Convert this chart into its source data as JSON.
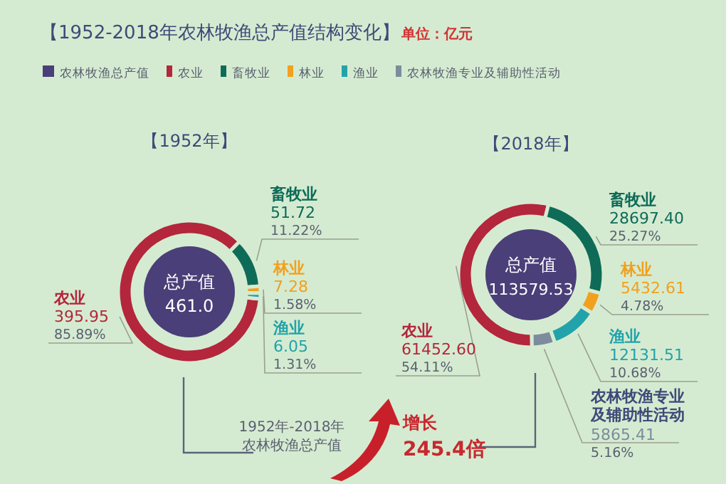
{
  "chart_data": [
    {
      "type": "donut",
      "title": "【1952-2018年农林牧渔总产值结构变化】",
      "subtitle": "【1952年】",
      "categories": [
        "农业",
        "畜牧业",
        "林业",
        "渔业"
      ],
      "values": [
        395.95,
        51.72,
        7.28,
        6.05
      ],
      "value_labels": [
        "395.95",
        "51.72",
        "7.28",
        "6.05"
      ],
      "colors": [
        "#b3263c",
        "#0e6b58",
        "#f2a01e",
        "#22a3aa"
      ],
      "annotations": [
        "单位：亿元",
        "总产值",
        "461.0",
        "1952年-2018年",
        "农林牧渔总产值",
        {
          "text": "85.89%",
          "x": "农业"
        },
        {
          "text": "11.22%",
          "x": "畜牧业"
        },
        {
          "text": "1.58%",
          "x": "林业"
        },
        {
          "text": "1.31%",
          "x": "渔业"
        }
      ]
    },
    {
      "type": "donut",
      "title": "【2018年】",
      "categories": [
        "农业",
        "畜牧业",
        "林业",
        "渔业",
        "农林牧渔专业及辅助性活动"
      ],
      "values": [
        61452.6,
        28697.4,
        5432.61,
        12131.51,
        5865.41
      ],
      "value_labels": [
        "61452.60",
        "28697.40",
        "5432.61",
        "12131.51",
        "5865.41"
      ],
      "colors": [
        "#b3263c",
        "#0e6b58",
        "#f2a01e",
        "#22a3aa",
        "#7d8c9c"
      ],
      "legend": "top",
      "annotations": [
        "农林牧渔总产值",
        "总产值",
        "113579.53",
        "增长",
        "245.4倍",
        {
          "text": "54.11%",
          "x": "农业"
        },
        {
          "text": "25.27%",
          "x": "畜牧业"
        },
        {
          "text": "4.78%",
          "x": "林业"
        },
        {
          "text": "10.68%",
          "x": "渔业"
        },
        {
          "text": "5.16%",
          "x": "农林牧渔专业及辅助性活动"
        }
      ]
    }
  ]
}
